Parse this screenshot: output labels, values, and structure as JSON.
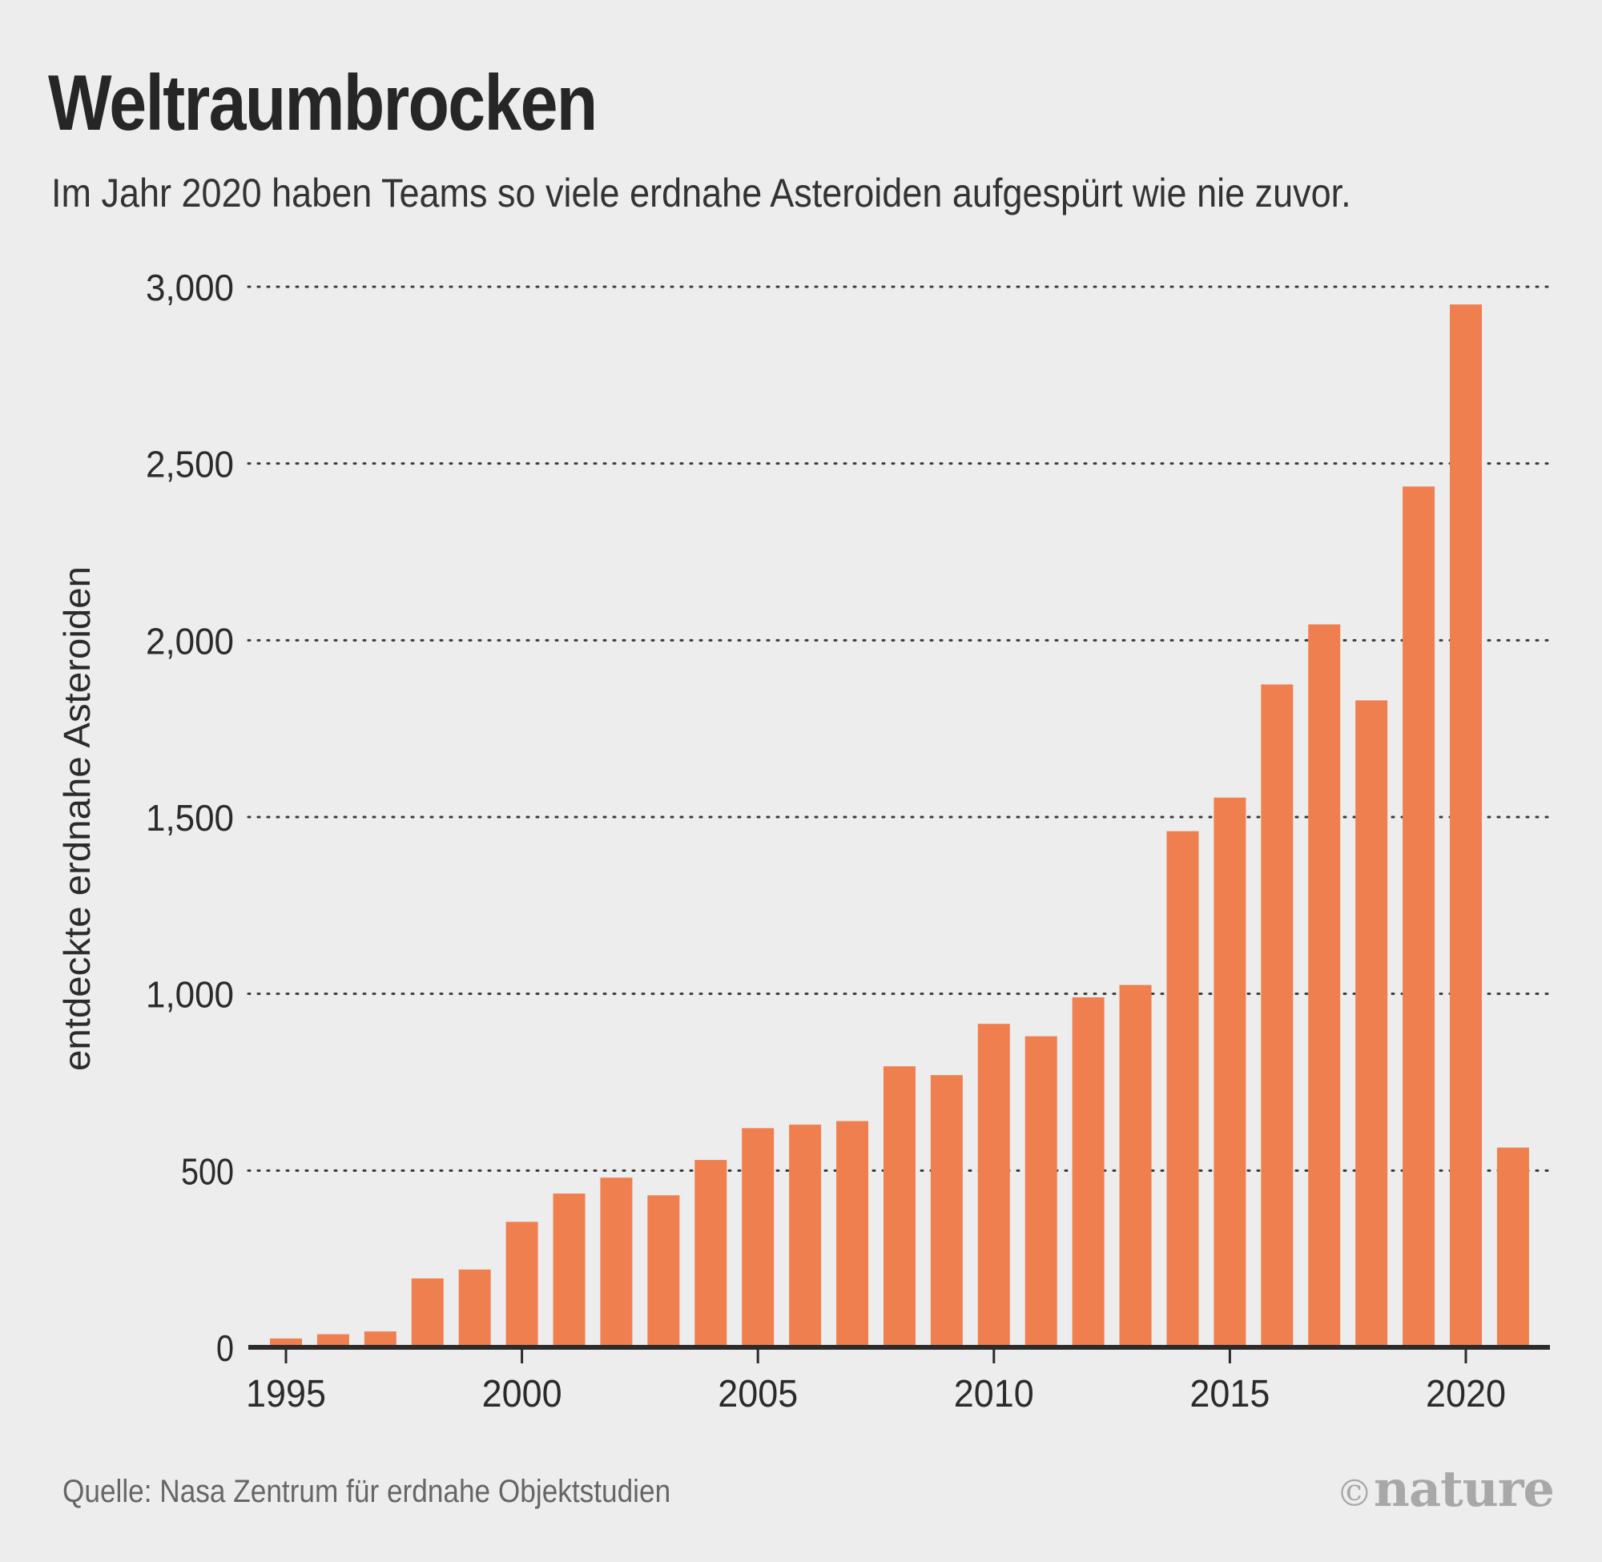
{
  "title": "Weltraumbrocken",
  "subtitle": "Im Jahr 2020 haben Teams so viele erdnahe Asteroiden aufgespürt wie nie zuvor.",
  "source": "Quelle: Nasa Zentrum für erdnahe Objektstudien",
  "logo": {
    "text": "©nature"
  },
  "chart_data": {
    "type": "bar",
    "x": [
      1995,
      1996,
      1997,
      1998,
      1999,
      2000,
      2001,
      2002,
      2003,
      2004,
      2005,
      2006,
      2007,
      2008,
      2009,
      2010,
      2011,
      2012,
      2013,
      2014,
      2015,
      2016,
      2017,
      2018,
      2019,
      2020,
      2021
    ],
    "values": [
      25,
      37,
      45,
      195,
      220,
      355,
      435,
      480,
      430,
      530,
      620,
      630,
      640,
      795,
      770,
      915,
      880,
      990,
      1025,
      1460,
      1555,
      1875,
      2045,
      1830,
      2435,
      2950,
      565
    ],
    "ylabel": "entdeckte erdnahe Asteroiden",
    "xlabel": "",
    "ylim": [
      0,
      3000
    ],
    "yticks": [
      0,
      500,
      1000,
      1500,
      2000,
      2500,
      3000
    ],
    "ytick_labels": [
      "0",
      "500",
      "1,000",
      "1,500",
      "2,000",
      "2,500",
      "3,000"
    ],
    "xticks": [
      1995,
      2000,
      2005,
      2010,
      2015,
      2020
    ],
    "xtick_labels": [
      "1995",
      "2000",
      "2005",
      "2010",
      "2015",
      "2020"
    ],
    "grid": "horizontal-dotted",
    "bar_color": "#f07f4f"
  }
}
